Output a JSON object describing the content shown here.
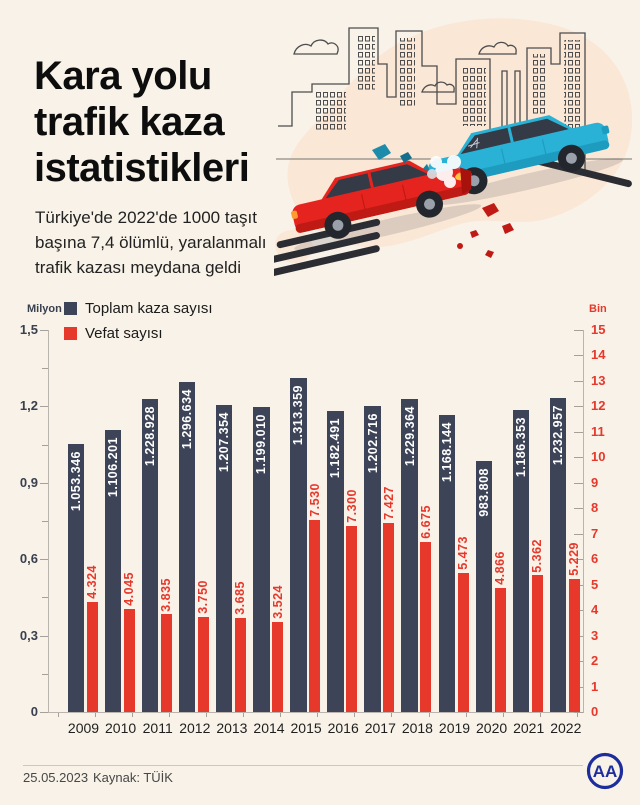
{
  "header": {
    "title_lines": [
      "Kara yolu",
      "trafik kaza",
      "istatistikleri"
    ],
    "subtitle": "Türkiye'de 2022'de 1000 taşıt başına 7,4 ölümlü, yaralanmalı trafik kazası meydana geldi"
  },
  "chart_data": {
    "type": "bar",
    "legend_position": "top-left",
    "grid": false,
    "categories": [
      "2009",
      "2010",
      "2011",
      "2012",
      "2013",
      "2014",
      "2015",
      "2016",
      "2017",
      "2018",
      "2019",
      "2020",
      "2021",
      "2022"
    ],
    "series": [
      {
        "name": "Toplam kaza sayısı",
        "axis": "left",
        "unit": "Milyon",
        "color": "#3d4458",
        "values": [
          1053346,
          1106201,
          1228928,
          1296634,
          1207354,
          1199010,
          1313359,
          1182491,
          1202716,
          1229364,
          1168144,
          983808,
          1186353,
          1232957
        ],
        "labels": [
          "1.053.346",
          "1.106.201",
          "1.228.928",
          "1.296.634",
          "1.207.354",
          "1.199.010",
          "1.313.359",
          "1.182.491",
          "1.202.716",
          "1.229.364",
          "1.168.144",
          "983.808",
          "1.186.353",
          "1.232.957"
        ]
      },
      {
        "name": "Vefat sayısı",
        "axis": "right",
        "unit": "Bin",
        "color": "#e7382c",
        "values": [
          4324,
          4045,
          3835,
          3750,
          3685,
          3524,
          7530,
          7300,
          7427,
          6675,
          5473,
          4866,
          5362,
          5229
        ],
        "labels": [
          "4.324",
          "4.045",
          "3.835",
          "3.750",
          "3.685",
          "3.524",
          "7.530",
          "7.300",
          "7.427",
          "6.675",
          "5.473",
          "4.866",
          "5.362",
          "5.229"
        ]
      }
    ],
    "left_axis": {
      "label": "Milyon",
      "max_value": 1500000,
      "ticks": [
        {
          "label": "1,5",
          "value": 1500000
        },
        {
          "label": "1,2",
          "value": 1200000
        },
        {
          "label": "0,9",
          "value": 900000
        },
        {
          "label": "0,6",
          "value": 600000
        },
        {
          "label": "0,3",
          "value": 300000
        },
        {
          "label": "0",
          "value": 0
        }
      ]
    },
    "right_axis": {
      "label": "Bin",
      "max_value": 15000,
      "ticks": [
        {
          "label": "15",
          "value": 15000
        },
        {
          "label": "14",
          "value": 14000
        },
        {
          "label": "13",
          "value": 13000
        },
        {
          "label": "12",
          "value": 12000
        },
        {
          "label": "11",
          "value": 11000
        },
        {
          "label": "10",
          "value": 10000
        },
        {
          "label": "9",
          "value": 9000
        },
        {
          "label": "8",
          "value": 8000
        },
        {
          "label": "7",
          "value": 7000
        },
        {
          "label": "6",
          "value": 6000
        },
        {
          "label": "5",
          "value": 5000
        },
        {
          "label": "4",
          "value": 4000
        },
        {
          "label": "3",
          "value": 3000
        },
        {
          "label": "2",
          "value": 2000
        },
        {
          "label": "1",
          "value": 1000
        },
        {
          "label": "0",
          "value": 0
        }
      ]
    },
    "legend": [
      {
        "label": "Toplam kaza sayısı",
        "color": "#3d4458"
      },
      {
        "label": "Vefat sayısı",
        "color": "#e7382c"
      }
    ]
  },
  "footer": {
    "date": "25.05.2023",
    "source": "Kaynak: TÜİK",
    "logo_text": "AA"
  }
}
